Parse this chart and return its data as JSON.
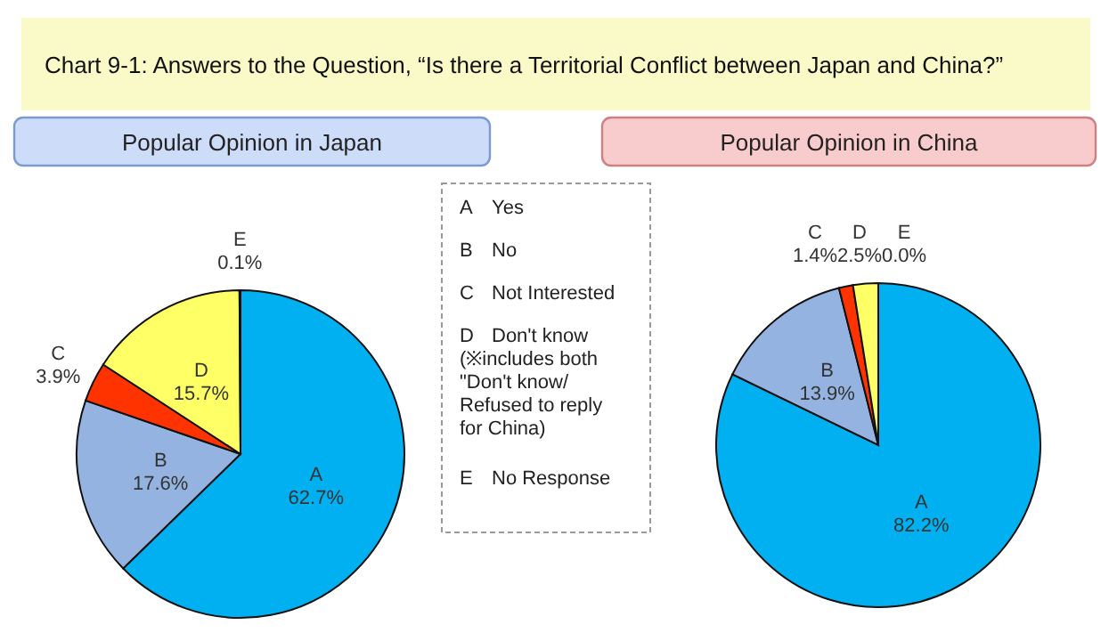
{
  "chart_data": [
    {
      "type": "pie",
      "title": "Chart 9-1: Answers to the Question, “Is there a Territorial Conflict between Japan and China?”",
      "subtitle": "Popular Opinion in Japan",
      "categories": [
        "A",
        "B",
        "C",
        "D",
        "E"
      ],
      "values": [
        62.7,
        17.6,
        3.9,
        15.7,
        0.1
      ],
      "value_labels": [
        "62.7%",
        "17.6%",
        "3.9%",
        "15.7%",
        "0.1%"
      ],
      "colors": [
        "#00b0f0",
        "#95b3e0",
        "#ff3300",
        "#ffff66",
        "#ffffcc"
      ]
    },
    {
      "type": "other",
      "annotations": [
        "A",
        "Yes",
        "B",
        "No",
        "C",
        "Not Interested",
        "D",
        "Don't know\n(※includes both\n\"Don't know/\nRefused to reply\nfor China)",
        "E",
        "No Response"
      ]
    },
    {
      "type": "pie",
      "title": "Popular Opinion in China",
      "categories": [
        "A",
        "B",
        "C",
        "D",
        "E"
      ],
      "values": [
        82.2,
        13.9,
        1.4,
        2.5,
        0.0
      ],
      "value_labels": [
        "82.2%",
        "13.9%",
        "1.4%",
        "2.5%",
        "0.0%"
      ],
      "colors": [
        "#00b0f0",
        "#95b3e0",
        "#ff3300",
        "#ffff66",
        "#ffffcc"
      ]
    }
  ]
}
